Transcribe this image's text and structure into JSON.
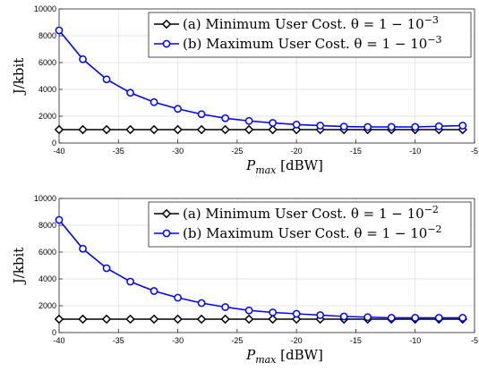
{
  "chart_data": [
    {
      "type": "line",
      "xlabel": "P_max [dBW]",
      "ylabel": "J/kbit",
      "xlim": [
        -40,
        -5
      ],
      "ylim": [
        0,
        10000
      ],
      "xticks": [
        -40,
        -35,
        -30,
        -25,
        -20,
        -15,
        -10,
        -5
      ],
      "yticks": [
        0,
        2000,
        4000,
        6000,
        8000,
        10000
      ],
      "grid": true,
      "legend_position": "top-right",
      "x": [
        -40,
        -38,
        -36,
        -34,
        -32,
        -30,
        -28,
        -26,
        -24,
        -22,
        -20,
        -18,
        -16,
        -14,
        -12,
        -10,
        -8,
        -6
      ],
      "series": [
        {
          "name": "(a) Minimum User Cost. θ = 1 − 10⁻³",
          "color": "#000000",
          "marker": "diamond",
          "values": [
            1000,
            1000,
            1000,
            1000,
            1000,
            1000,
            1000,
            1000,
            1000,
            1000,
            1000,
            1000,
            1000,
            1000,
            1000,
            1000,
            1000,
            1000
          ]
        },
        {
          "name": "(b) Maximum User Cost. θ = 1 − 10⁻³",
          "color": "#0000ff",
          "marker": "circle",
          "values": [
            8400,
            6250,
            4750,
            3750,
            3050,
            2550,
            2150,
            1850,
            1650,
            1500,
            1380,
            1300,
            1230,
            1200,
            1200,
            1200,
            1250,
            1300
          ]
        }
      ]
    },
    {
      "type": "line",
      "xlabel": "P_max [dBW]",
      "ylabel": "J/kbit",
      "xlim": [
        -40,
        -5
      ],
      "ylim": [
        0,
        10000
      ],
      "xticks": [
        -40,
        -35,
        -30,
        -25,
        -20,
        -15,
        -10,
        -5
      ],
      "yticks": [
        0,
        2000,
        4000,
        6000,
        8000,
        10000
      ],
      "grid": true,
      "legend_position": "top-right",
      "x": [
        -40,
        -38,
        -36,
        -34,
        -32,
        -30,
        -28,
        -26,
        -24,
        -22,
        -20,
        -18,
        -16,
        -14,
        -12,
        -10,
        -8,
        -6
      ],
      "series": [
        {
          "name": "(a) Minimum User Cost. θ = 1 − 10⁻²",
          "color": "#000000",
          "marker": "diamond",
          "values": [
            1000,
            1000,
            1000,
            1000,
            1000,
            1000,
            1000,
            1000,
            1000,
            1000,
            1000,
            1000,
            1000,
            1000,
            1000,
            1000,
            1000,
            1000
          ]
        },
        {
          "name": "(b) Maximum User Cost. θ = 1 − 10⁻²",
          "color": "#0000ff",
          "marker": "circle",
          "values": [
            8400,
            6250,
            4800,
            3800,
            3100,
            2600,
            2200,
            1900,
            1650,
            1500,
            1400,
            1300,
            1200,
            1150,
            1100,
            1100,
            1100,
            1100
          ]
        }
      ]
    }
  ]
}
